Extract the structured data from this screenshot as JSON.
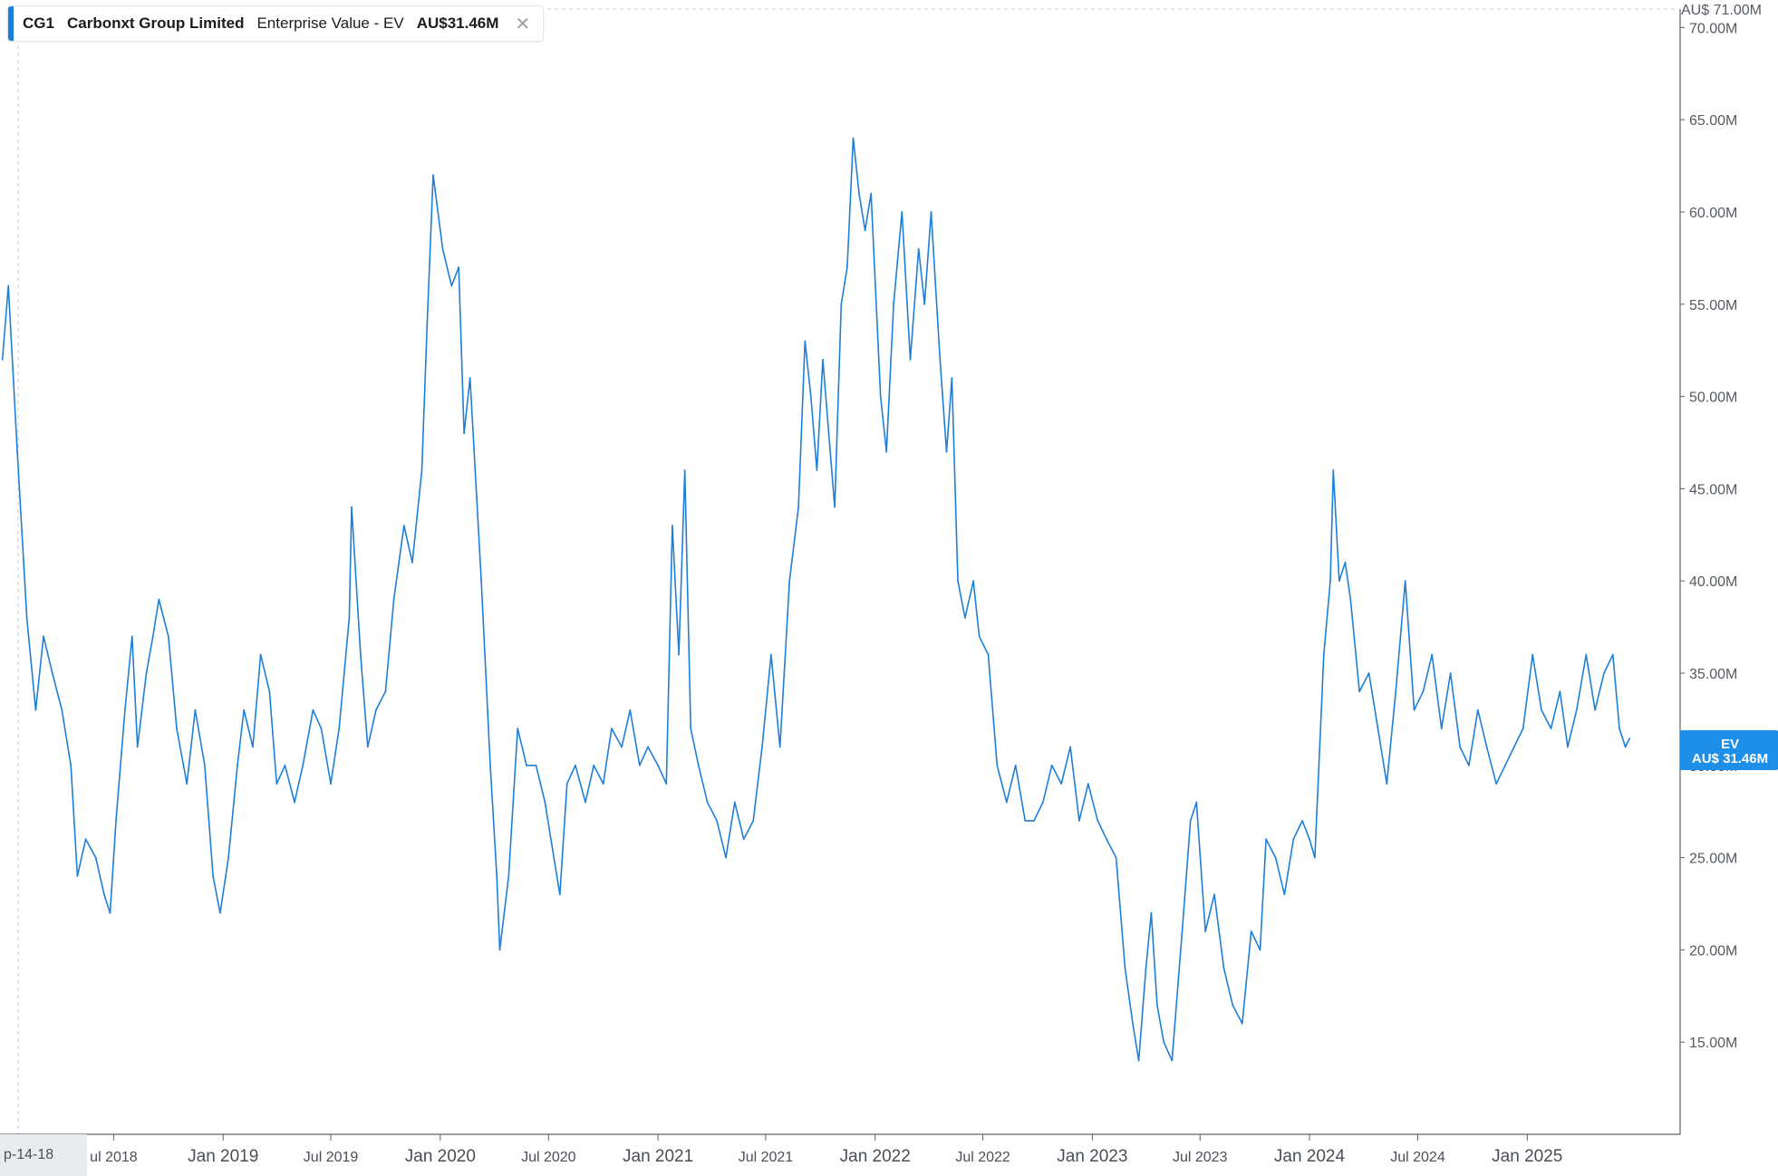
{
  "legend": {
    "ticker": "CG1",
    "company": "Carbonxt Group Limited",
    "metric": "Enterprise Value - EV",
    "value": "AU$31.46M",
    "close_glyph": "✕",
    "color": "#1e7fd8"
  },
  "max_label": "AU$ 71.00M",
  "start_label": "p-14-18",
  "badge": {
    "line1": "EV",
    "line2": "AU$ 31.46M",
    "color": "#1e8fe8"
  },
  "chart_data": {
    "type": "line",
    "x_type": "date",
    "xlim": [
      "2017-12-25",
      "2025-09-15"
    ],
    "ylim": [
      10,
      71
    ],
    "y_unit": "AU$ millions",
    "y_ticks": [
      {
        "value": 15,
        "label": "15.00M"
      },
      {
        "value": 20,
        "label": "20.00M"
      },
      {
        "value": 25,
        "label": "25.00M"
      },
      {
        "value": 30,
        "label": "30.00M"
      },
      {
        "value": 35,
        "label": "35.00M"
      },
      {
        "value": 40,
        "label": "40.00M"
      },
      {
        "value": 45,
        "label": "45.00M"
      },
      {
        "value": 50,
        "label": "50.00M"
      },
      {
        "value": 55,
        "label": "55.00M"
      },
      {
        "value": 60,
        "label": "60.00M"
      },
      {
        "value": 65,
        "label": "65.00M"
      },
      {
        "value": 70,
        "label": "70.00M"
      }
    ],
    "x_ticks": [
      {
        "date": "2018-07-01",
        "label": "ul 2018",
        "major": false
      },
      {
        "date": "2019-01-01",
        "label": "Jan 2019",
        "major": true
      },
      {
        "date": "2019-07-01",
        "label": "Jul 2019",
        "major": false
      },
      {
        "date": "2020-01-01",
        "label": "Jan 2020",
        "major": true
      },
      {
        "date": "2020-07-01",
        "label": "Jul 2020",
        "major": false
      },
      {
        "date": "2021-01-01",
        "label": "Jan 2021",
        "major": true
      },
      {
        "date": "2021-07-01",
        "label": "Jul 2021",
        "major": false
      },
      {
        "date": "2022-01-01",
        "label": "Jan 2022",
        "major": true
      },
      {
        "date": "2022-07-01",
        "label": "Jul 2022",
        "major": false
      },
      {
        "date": "2023-01-01",
        "label": "Jan 2023",
        "major": true
      },
      {
        "date": "2023-07-01",
        "label": "Jul 2023",
        "major": false
      },
      {
        "date": "2024-01-01",
        "label": "Jan 2024",
        "major": true
      },
      {
        "date": "2024-07-01",
        "label": "Jul 2024",
        "major": false
      },
      {
        "date": "2025-01-01",
        "label": "Jan 2025",
        "major": true
      }
    ],
    "series": [
      {
        "color": "#1e7fd8",
        "points": [
          [
            "2017-12-26",
            52
          ],
          [
            "2018-01-05",
            56
          ],
          [
            "2018-01-20",
            47
          ],
          [
            "2018-02-05",
            38
          ],
          [
            "2018-02-20",
            33
          ],
          [
            "2018-03-05",
            37
          ],
          [
            "2018-03-20",
            35
          ],
          [
            "2018-04-05",
            33
          ],
          [
            "2018-04-20",
            30
          ],
          [
            "2018-05-01",
            24
          ],
          [
            "2018-05-15",
            26
          ],
          [
            "2018-06-01",
            25
          ],
          [
            "2018-06-15",
            23
          ],
          [
            "2018-06-25",
            22
          ],
          [
            "2018-07-05",
            27
          ],
          [
            "2018-07-20",
            33
          ],
          [
            "2018-08-01",
            37
          ],
          [
            "2018-08-10",
            31
          ],
          [
            "2018-08-25",
            35
          ],
          [
            "2018-09-05",
            37
          ],
          [
            "2018-09-15",
            39
          ],
          [
            "2018-10-01",
            37
          ],
          [
            "2018-10-15",
            32
          ],
          [
            "2018-11-01",
            29
          ],
          [
            "2018-11-15",
            33
          ],
          [
            "2018-12-01",
            30
          ],
          [
            "2018-12-15",
            24
          ],
          [
            "2018-12-27",
            22
          ],
          [
            "2019-01-10",
            25
          ],
          [
            "2019-01-25",
            30
          ],
          [
            "2019-02-05",
            33
          ],
          [
            "2019-02-20",
            31
          ],
          [
            "2019-03-05",
            36
          ],
          [
            "2019-03-20",
            34
          ],
          [
            "2019-04-01",
            29
          ],
          [
            "2019-04-15",
            30
          ],
          [
            "2019-05-01",
            28
          ],
          [
            "2019-05-15",
            30
          ],
          [
            "2019-06-01",
            33
          ],
          [
            "2019-06-15",
            32
          ],
          [
            "2019-07-01",
            29
          ],
          [
            "2019-07-15",
            32
          ],
          [
            "2019-08-01",
            38
          ],
          [
            "2019-08-05",
            44
          ],
          [
            "2019-08-20",
            36
          ],
          [
            "2019-09-01",
            31
          ],
          [
            "2019-09-15",
            33
          ],
          [
            "2019-10-01",
            34
          ],
          [
            "2019-10-15",
            39
          ],
          [
            "2019-11-01",
            43
          ],
          [
            "2019-11-15",
            41
          ],
          [
            "2019-12-01",
            46
          ],
          [
            "2019-12-10",
            54
          ],
          [
            "2019-12-20",
            62
          ],
          [
            "2020-01-05",
            58
          ],
          [
            "2020-01-20",
            56
          ],
          [
            "2020-02-01",
            57
          ],
          [
            "2020-02-10",
            48
          ],
          [
            "2020-02-20",
            51
          ],
          [
            "2020-03-10",
            40
          ],
          [
            "2020-03-25",
            30
          ],
          [
            "2020-04-05",
            24
          ],
          [
            "2020-04-10",
            20
          ],
          [
            "2020-04-25",
            24
          ],
          [
            "2020-05-10",
            32
          ],
          [
            "2020-05-25",
            30
          ],
          [
            "2020-06-10",
            30
          ],
          [
            "2020-06-25",
            28
          ],
          [
            "2020-07-10",
            25
          ],
          [
            "2020-07-20",
            23
          ],
          [
            "2020-08-01",
            29
          ],
          [
            "2020-08-15",
            30
          ],
          [
            "2020-09-01",
            28
          ],
          [
            "2020-09-15",
            30
          ],
          [
            "2020-10-01",
            29
          ],
          [
            "2020-10-15",
            32
          ],
          [
            "2020-11-01",
            31
          ],
          [
            "2020-11-15",
            33
          ],
          [
            "2020-12-01",
            30
          ],
          [
            "2020-12-15",
            31
          ],
          [
            "2021-01-01",
            30
          ],
          [
            "2021-01-15",
            29
          ],
          [
            "2021-01-25",
            43
          ],
          [
            "2021-02-05",
            36
          ],
          [
            "2021-02-15",
            46
          ],
          [
            "2021-02-25",
            32
          ],
          [
            "2021-03-10",
            30
          ],
          [
            "2021-03-25",
            28
          ],
          [
            "2021-04-10",
            27
          ],
          [
            "2021-04-25",
            25
          ],
          [
            "2021-05-10",
            28
          ],
          [
            "2021-05-25",
            26
          ],
          [
            "2021-06-10",
            27
          ],
          [
            "2021-06-25",
            31
          ],
          [
            "2021-07-10",
            36
          ],
          [
            "2021-07-25",
            31
          ],
          [
            "2021-08-10",
            40
          ],
          [
            "2021-08-25",
            44
          ],
          [
            "2021-09-05",
            53
          ],
          [
            "2021-09-15",
            50
          ],
          [
            "2021-09-25",
            46
          ],
          [
            "2021-10-05",
            52
          ],
          [
            "2021-10-15",
            48
          ],
          [
            "2021-10-25",
            44
          ],
          [
            "2021-11-05",
            55
          ],
          [
            "2021-11-15",
            57
          ],
          [
            "2021-11-25",
            64
          ],
          [
            "2021-12-05",
            61
          ],
          [
            "2021-12-15",
            59
          ],
          [
            "2021-12-25",
            61
          ],
          [
            "2022-01-10",
            50
          ],
          [
            "2022-01-20",
            47
          ],
          [
            "2022-02-01",
            55
          ],
          [
            "2022-02-15",
            60
          ],
          [
            "2022-03-01",
            52
          ],
          [
            "2022-03-15",
            58
          ],
          [
            "2022-03-25",
            55
          ],
          [
            "2022-04-05",
            60
          ],
          [
            "2022-04-20",
            52
          ],
          [
            "2022-05-01",
            47
          ],
          [
            "2022-05-10",
            51
          ],
          [
            "2022-05-20",
            40
          ],
          [
            "2022-06-01",
            38
          ],
          [
            "2022-06-15",
            40
          ],
          [
            "2022-06-25",
            37
          ],
          [
            "2022-07-10",
            36
          ],
          [
            "2022-07-25",
            30
          ],
          [
            "2022-08-10",
            28
          ],
          [
            "2022-08-25",
            30
          ],
          [
            "2022-09-10",
            27
          ],
          [
            "2022-09-25",
            27
          ],
          [
            "2022-10-10",
            28
          ],
          [
            "2022-10-25",
            30
          ],
          [
            "2022-11-10",
            29
          ],
          [
            "2022-11-25",
            31
          ],
          [
            "2022-12-10",
            27
          ],
          [
            "2022-12-25",
            29
          ],
          [
            "2023-01-10",
            27
          ],
          [
            "2023-01-25",
            26
          ],
          [
            "2023-02-10",
            25
          ],
          [
            "2023-02-25",
            19
          ],
          [
            "2023-03-10",
            16
          ],
          [
            "2023-03-20",
            14
          ],
          [
            "2023-04-01",
            19
          ],
          [
            "2023-04-10",
            22
          ],
          [
            "2023-04-20",
            17
          ],
          [
            "2023-05-01",
            15
          ],
          [
            "2023-05-15",
            14
          ],
          [
            "2023-06-01",
            21
          ],
          [
            "2023-06-15",
            27
          ],
          [
            "2023-06-25",
            28
          ],
          [
            "2023-07-10",
            21
          ],
          [
            "2023-07-25",
            23
          ],
          [
            "2023-08-10",
            19
          ],
          [
            "2023-08-25",
            17
          ],
          [
            "2023-09-10",
            16
          ],
          [
            "2023-09-25",
            21
          ],
          [
            "2023-10-10",
            20
          ],
          [
            "2023-10-20",
            26
          ],
          [
            "2023-11-05",
            25
          ],
          [
            "2023-11-20",
            23
          ],
          [
            "2023-12-05",
            26
          ],
          [
            "2023-12-20",
            27
          ],
          [
            "2024-01-01",
            26
          ],
          [
            "2024-01-10",
            25
          ],
          [
            "2024-01-25",
            36
          ],
          [
            "2024-02-05",
            40
          ],
          [
            "2024-02-10",
            46
          ],
          [
            "2024-02-20",
            40
          ],
          [
            "2024-03-01",
            41
          ],
          [
            "2024-03-10",
            39
          ],
          [
            "2024-03-25",
            34
          ],
          [
            "2024-04-10",
            35
          ],
          [
            "2024-04-25",
            32
          ],
          [
            "2024-05-10",
            29
          ],
          [
            "2024-05-25",
            34
          ],
          [
            "2024-06-10",
            40
          ],
          [
            "2024-06-25",
            33
          ],
          [
            "2024-07-10",
            34
          ],
          [
            "2024-07-25",
            36
          ],
          [
            "2024-08-10",
            32
          ],
          [
            "2024-08-25",
            35
          ],
          [
            "2024-09-10",
            31
          ],
          [
            "2024-09-25",
            30
          ],
          [
            "2024-10-10",
            33
          ],
          [
            "2024-10-25",
            31
          ],
          [
            "2024-11-10",
            29
          ],
          [
            "2024-11-25",
            30
          ],
          [
            "2024-12-10",
            31
          ],
          [
            "2024-12-25",
            32
          ],
          [
            "2025-01-10",
            36
          ],
          [
            "2025-01-25",
            33
          ],
          [
            "2025-02-10",
            32
          ],
          [
            "2025-02-25",
            34
          ],
          [
            "2025-03-10",
            31
          ],
          [
            "2025-03-25",
            33
          ],
          [
            "2025-04-10",
            36
          ],
          [
            "2025-04-25",
            33
          ],
          [
            "2025-05-10",
            35
          ],
          [
            "2025-05-25",
            36
          ],
          [
            "2025-06-05",
            32
          ],
          [
            "2025-06-15",
            31
          ],
          [
            "2025-06-22",
            31.46
          ]
        ]
      }
    ]
  }
}
